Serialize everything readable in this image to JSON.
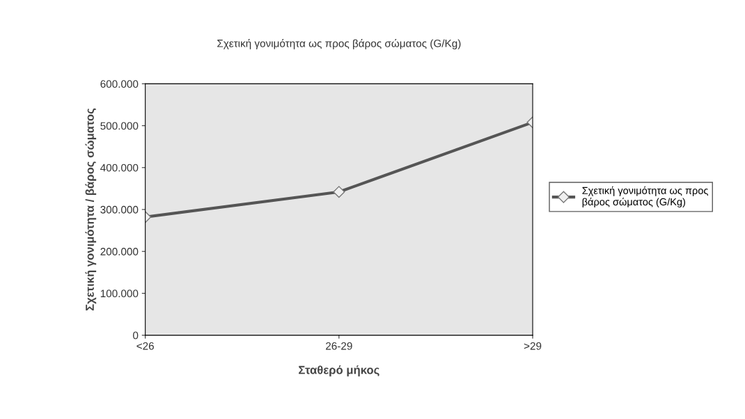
{
  "chart_data": {
    "type": "line",
    "title": "Σχετική γονιμότητα ως προς βάρος σώματος (G/Kg)",
    "xlabel": "Σταθερό μήκος",
    "ylabel": "Σχετική γονιμότητα / βάρος σώματος",
    "categories": [
      "<26",
      "26-29",
      ">29"
    ],
    "series": [
      {
        "name": "Σχετική γονιμότητα ως προς βάρος σώματος (G/Kg)",
        "color": "#555555",
        "values": [
          282000,
          342000,
          508000
        ]
      }
    ],
    "ylim": [
      0,
      600000
    ],
    "yticks": [
      0,
      {
        "value": 100000,
        "label": "100.000"
      },
      {
        "value": 200000,
        "label": "200.000"
      },
      {
        "value": 300000,
        "label": "300.000"
      },
      {
        "value": 400000,
        "label": "400.000"
      },
      {
        "value": 500000,
        "label": "500.000"
      },
      {
        "value": 600000,
        "label": "600.000"
      }
    ],
    "marker": "diamond",
    "legend": "right",
    "grid": false
  }
}
